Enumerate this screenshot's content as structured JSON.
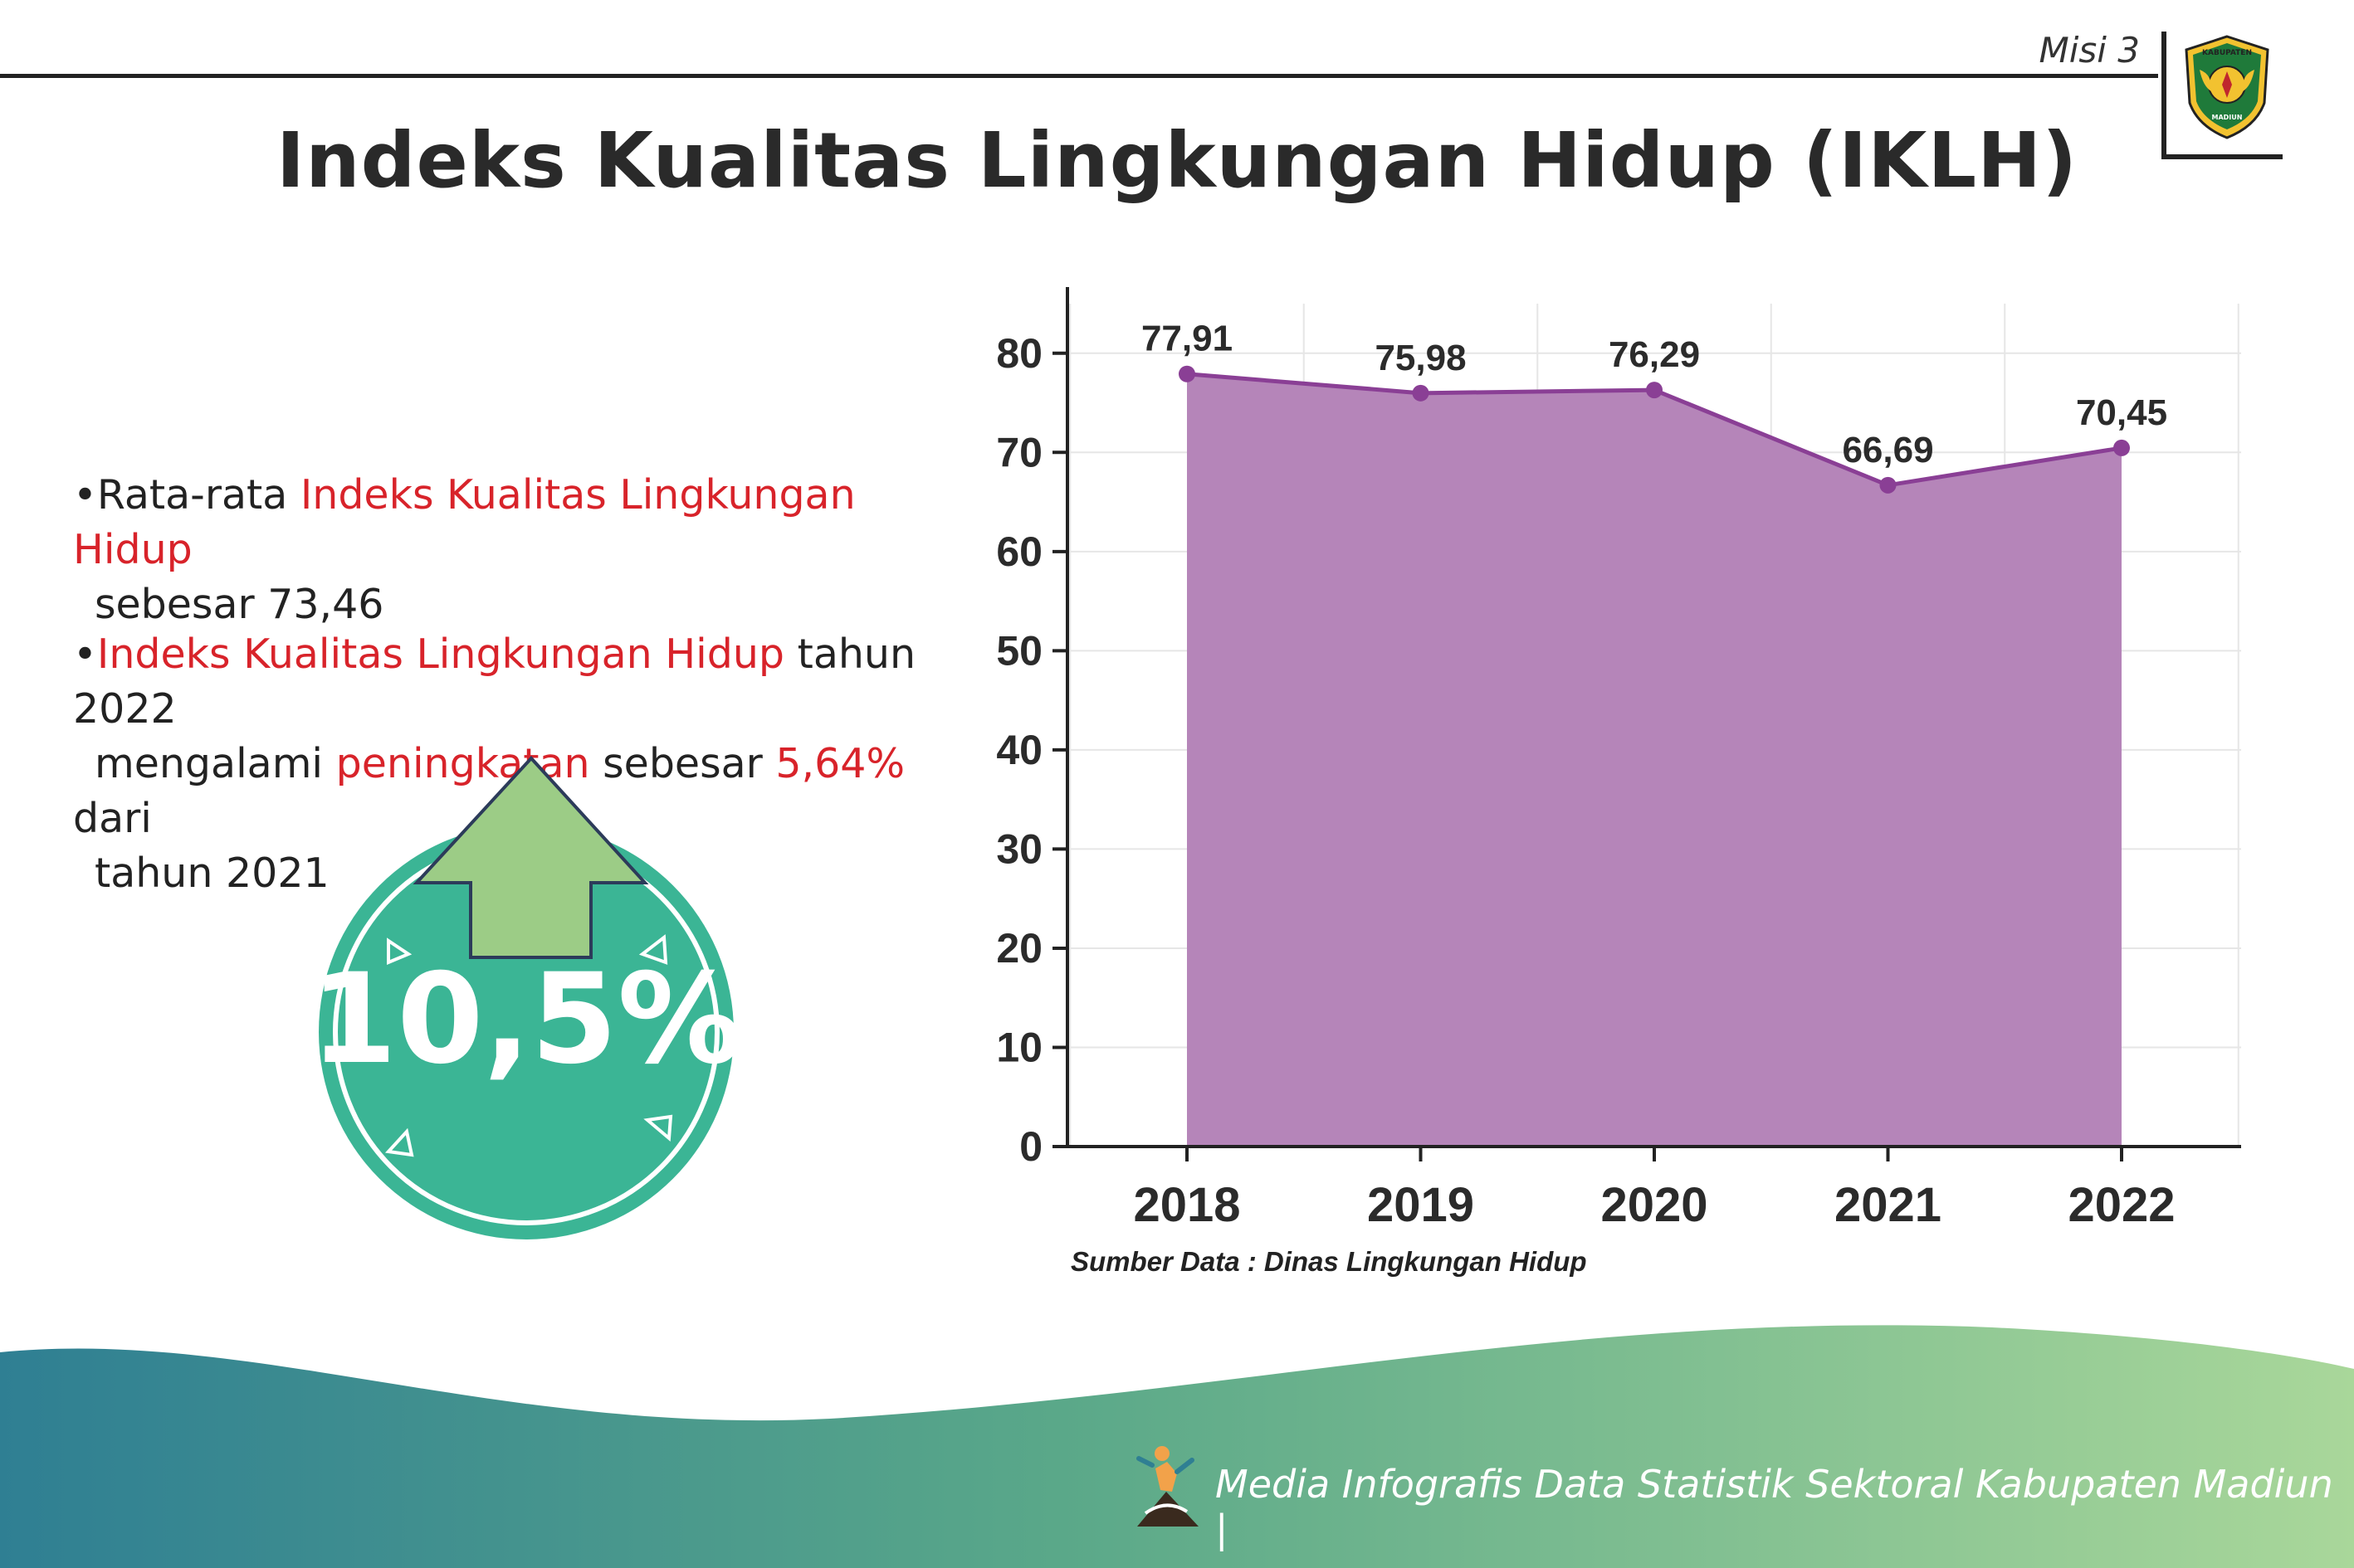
{
  "header": {
    "misi_label": "Misi 3",
    "logo_text_top": "KABUPATEN",
    "logo_text_bottom": "MADIUN"
  },
  "title": "Indeks Kualitas Lingkungan Hidup (IKLH)",
  "bullets": [
    {
      "dot": "•",
      "pre": "Rata-rata ",
      "highlight": "Indeks Kualitas Lingkungan Hidup",
      "post_line2": "sebesar 73,46"
    },
    {
      "dot": "•",
      "highlight1": "Indeks Kualitas Lingkungan Hidup",
      "text1": " tahun 2022",
      "text2": "mengalami ",
      "highlight2": "peningkatan",
      "text3": " sebesar ",
      "highlight3": "5,64%",
      "text4": " dari",
      "text5": "tahun 2021"
    }
  ],
  "badge": {
    "value": "10,5%",
    "circle_color": "#3bb595",
    "arrow_color": "#9ccc86"
  },
  "chart_data": {
    "type": "area",
    "categories": [
      "2018",
      "2019",
      "2020",
      "2021",
      "2022"
    ],
    "series": [
      {
        "values": [
          77.91,
          75.98,
          76.29,
          66.69,
          70.45
        ]
      }
    ],
    "data_labels": [
      "77,91",
      "75,98",
      "76,29",
      "66,69",
      "70,45"
    ],
    "yticks": [
      0,
      10,
      20,
      30,
      40,
      50,
      60,
      70,
      80
    ],
    "ylim": [
      0,
      85
    ],
    "grid": true,
    "fill_color": "#b585b9",
    "line_color": "#8a3f95"
  },
  "source": "Sumber Data : Dinas Lingkungan Hidup",
  "footer": {
    "text": "Media Infografis Data Statistik Sektoral Kabupaten Madiun |",
    "wave_colors": [
      "#2f7f93",
      "#5aa889",
      "#a9d79a"
    ]
  }
}
